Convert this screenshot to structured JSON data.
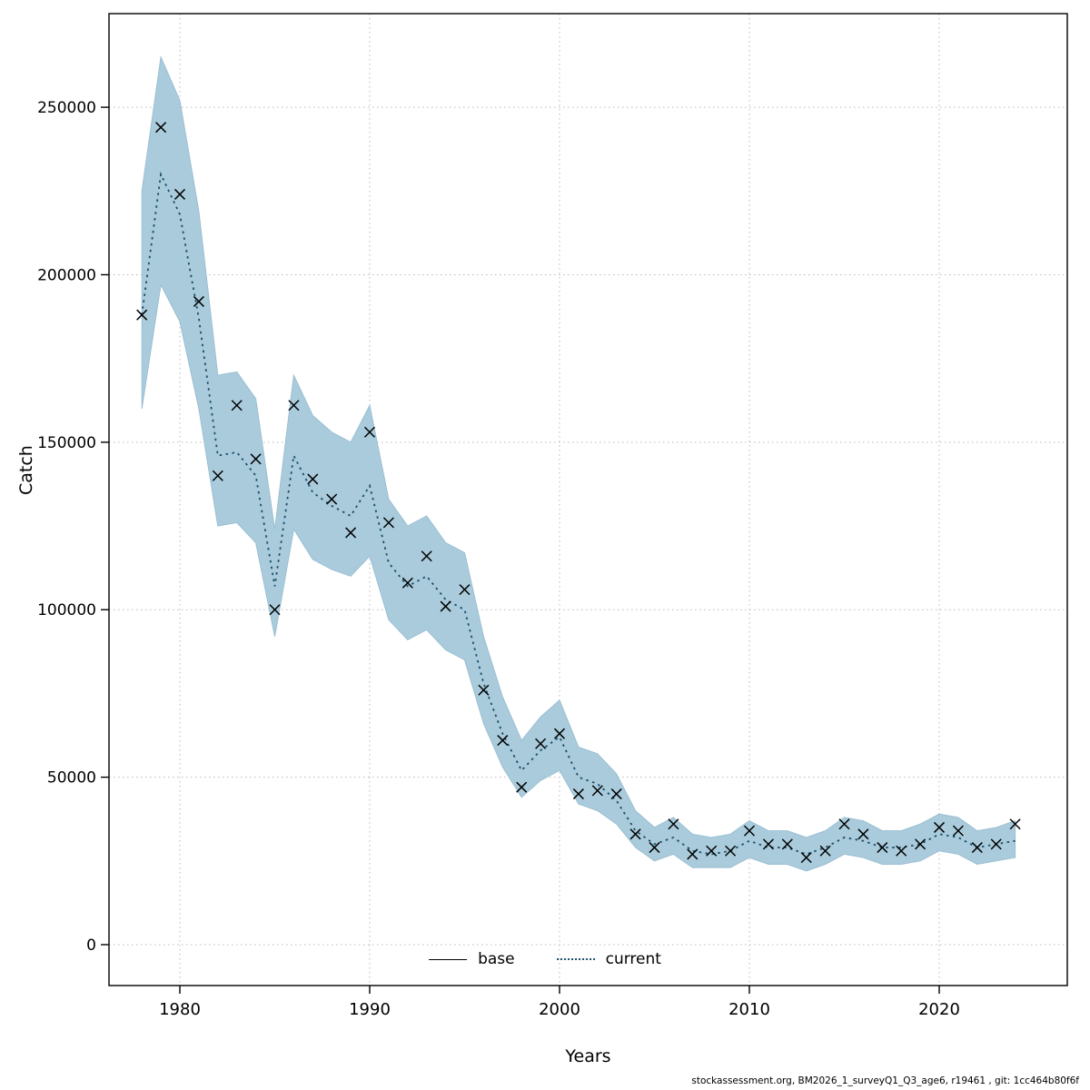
{
  "figure": {
    "xlabel": "Years",
    "ylabel": "Catch",
    "footer": "stockassessment.org, BM2026_1_surveyQ1_Q3_age6, r19461 , git: 1cc464b80f6f"
  },
  "legend": {
    "base_label": "base",
    "current_label": "current"
  },
  "colors": {
    "ribbon_fill": "#a9cbdc",
    "ribbon_edge": "#9bbfd2",
    "current_line": "#1b4f68",
    "base_line": "#000000",
    "marker": "#000000",
    "grid": "#b9b9b9",
    "box": "#000000"
  },
  "chart_data": {
    "type": "line",
    "title": "",
    "xlabel": "Years",
    "ylabel": "Catch",
    "x_ticks": [
      1980,
      1990,
      2000,
      2010,
      2020
    ],
    "y_ticks": [
      0,
      50000,
      100000,
      150000,
      200000,
      250000
    ],
    "xlim": [
      1976.3,
      2026.7
    ],
    "ylim": [
      0,
      278000
    ],
    "grid": true,
    "legend_position": "bottom-center",
    "years": [
      1978,
      1979,
      1980,
      1981,
      1982,
      1983,
      1984,
      1985,
      1986,
      1987,
      1988,
      1989,
      1990,
      1991,
      1992,
      1993,
      1994,
      1995,
      1996,
      1997,
      1998,
      1999,
      2000,
      2001,
      2002,
      2003,
      2004,
      2005,
      2006,
      2007,
      2008,
      2009,
      2010,
      2011,
      2012,
      2013,
      2014,
      2015,
      2016,
      2017,
      2018,
      2019,
      2020,
      2021,
      2022,
      2023,
      2024
    ],
    "series": [
      {
        "name": "observed_catch_markers",
        "marker": "x",
        "values": [
          188000,
          244000,
          224000,
          192000,
          140000,
          161000,
          145000,
          100000,
          161000,
          139000,
          133000,
          123000,
          153000,
          126000,
          108000,
          116000,
          101000,
          106000,
          76000,
          61000,
          47000,
          60000,
          63000,
          45000,
          46000,
          45000,
          33000,
          29000,
          36000,
          27000,
          28000,
          28000,
          34000,
          30000,
          30000,
          26000,
          28000,
          36000,
          33000,
          29000,
          28000,
          30000,
          35000,
          34000,
          29000,
          30000,
          36000
        ]
      },
      {
        "name": "current",
        "style": "dotted",
        "values": [
          188000,
          230000,
          218000,
          187000,
          146000,
          147000,
          140000,
          107000,
          146000,
          135000,
          131000,
          128000,
          137000,
          114000,
          107000,
          110000,
          103000,
          100000,
          78000,
          63000,
          52000,
          58000,
          62000,
          50000,
          48000,
          43000,
          34000,
          30000,
          32000,
          28000,
          27000,
          28000,
          31000,
          29000,
          29000,
          27000,
          29000,
          32000,
          31000,
          29000,
          29000,
          30000,
          33000,
          32000,
          29000,
          30000,
          31000
        ]
      }
    ],
    "ci_lower": [
      160000,
      197000,
      186000,
      160000,
      125000,
      126000,
      120000,
      92000,
      124000,
      115000,
      112000,
      110000,
      116000,
      97000,
      91000,
      94000,
      88000,
      85000,
      66000,
      53000,
      44000,
      49000,
      52000,
      42000,
      40000,
      36000,
      29000,
      25000,
      27000,
      23000,
      23000,
      23000,
      26000,
      24000,
      24000,
      22000,
      24000,
      27000,
      26000,
      24000,
      24000,
      25000,
      28000,
      27000,
      24000,
      25000,
      26000
    ],
    "ci_upper": [
      225000,
      265000,
      252000,
      219000,
      170000,
      171000,
      163000,
      124000,
      170000,
      158000,
      153000,
      150000,
      161000,
      133000,
      125000,
      128000,
      120000,
      117000,
      92000,
      74000,
      61000,
      68000,
      73000,
      59000,
      57000,
      51000,
      40000,
      35000,
      38000,
      33000,
      32000,
      33000,
      37000,
      34000,
      34000,
      32000,
      34000,
      38000,
      37000,
      34000,
      34000,
      36000,
      39000,
      38000,
      34000,
      35000,
      37000
    ]
  }
}
